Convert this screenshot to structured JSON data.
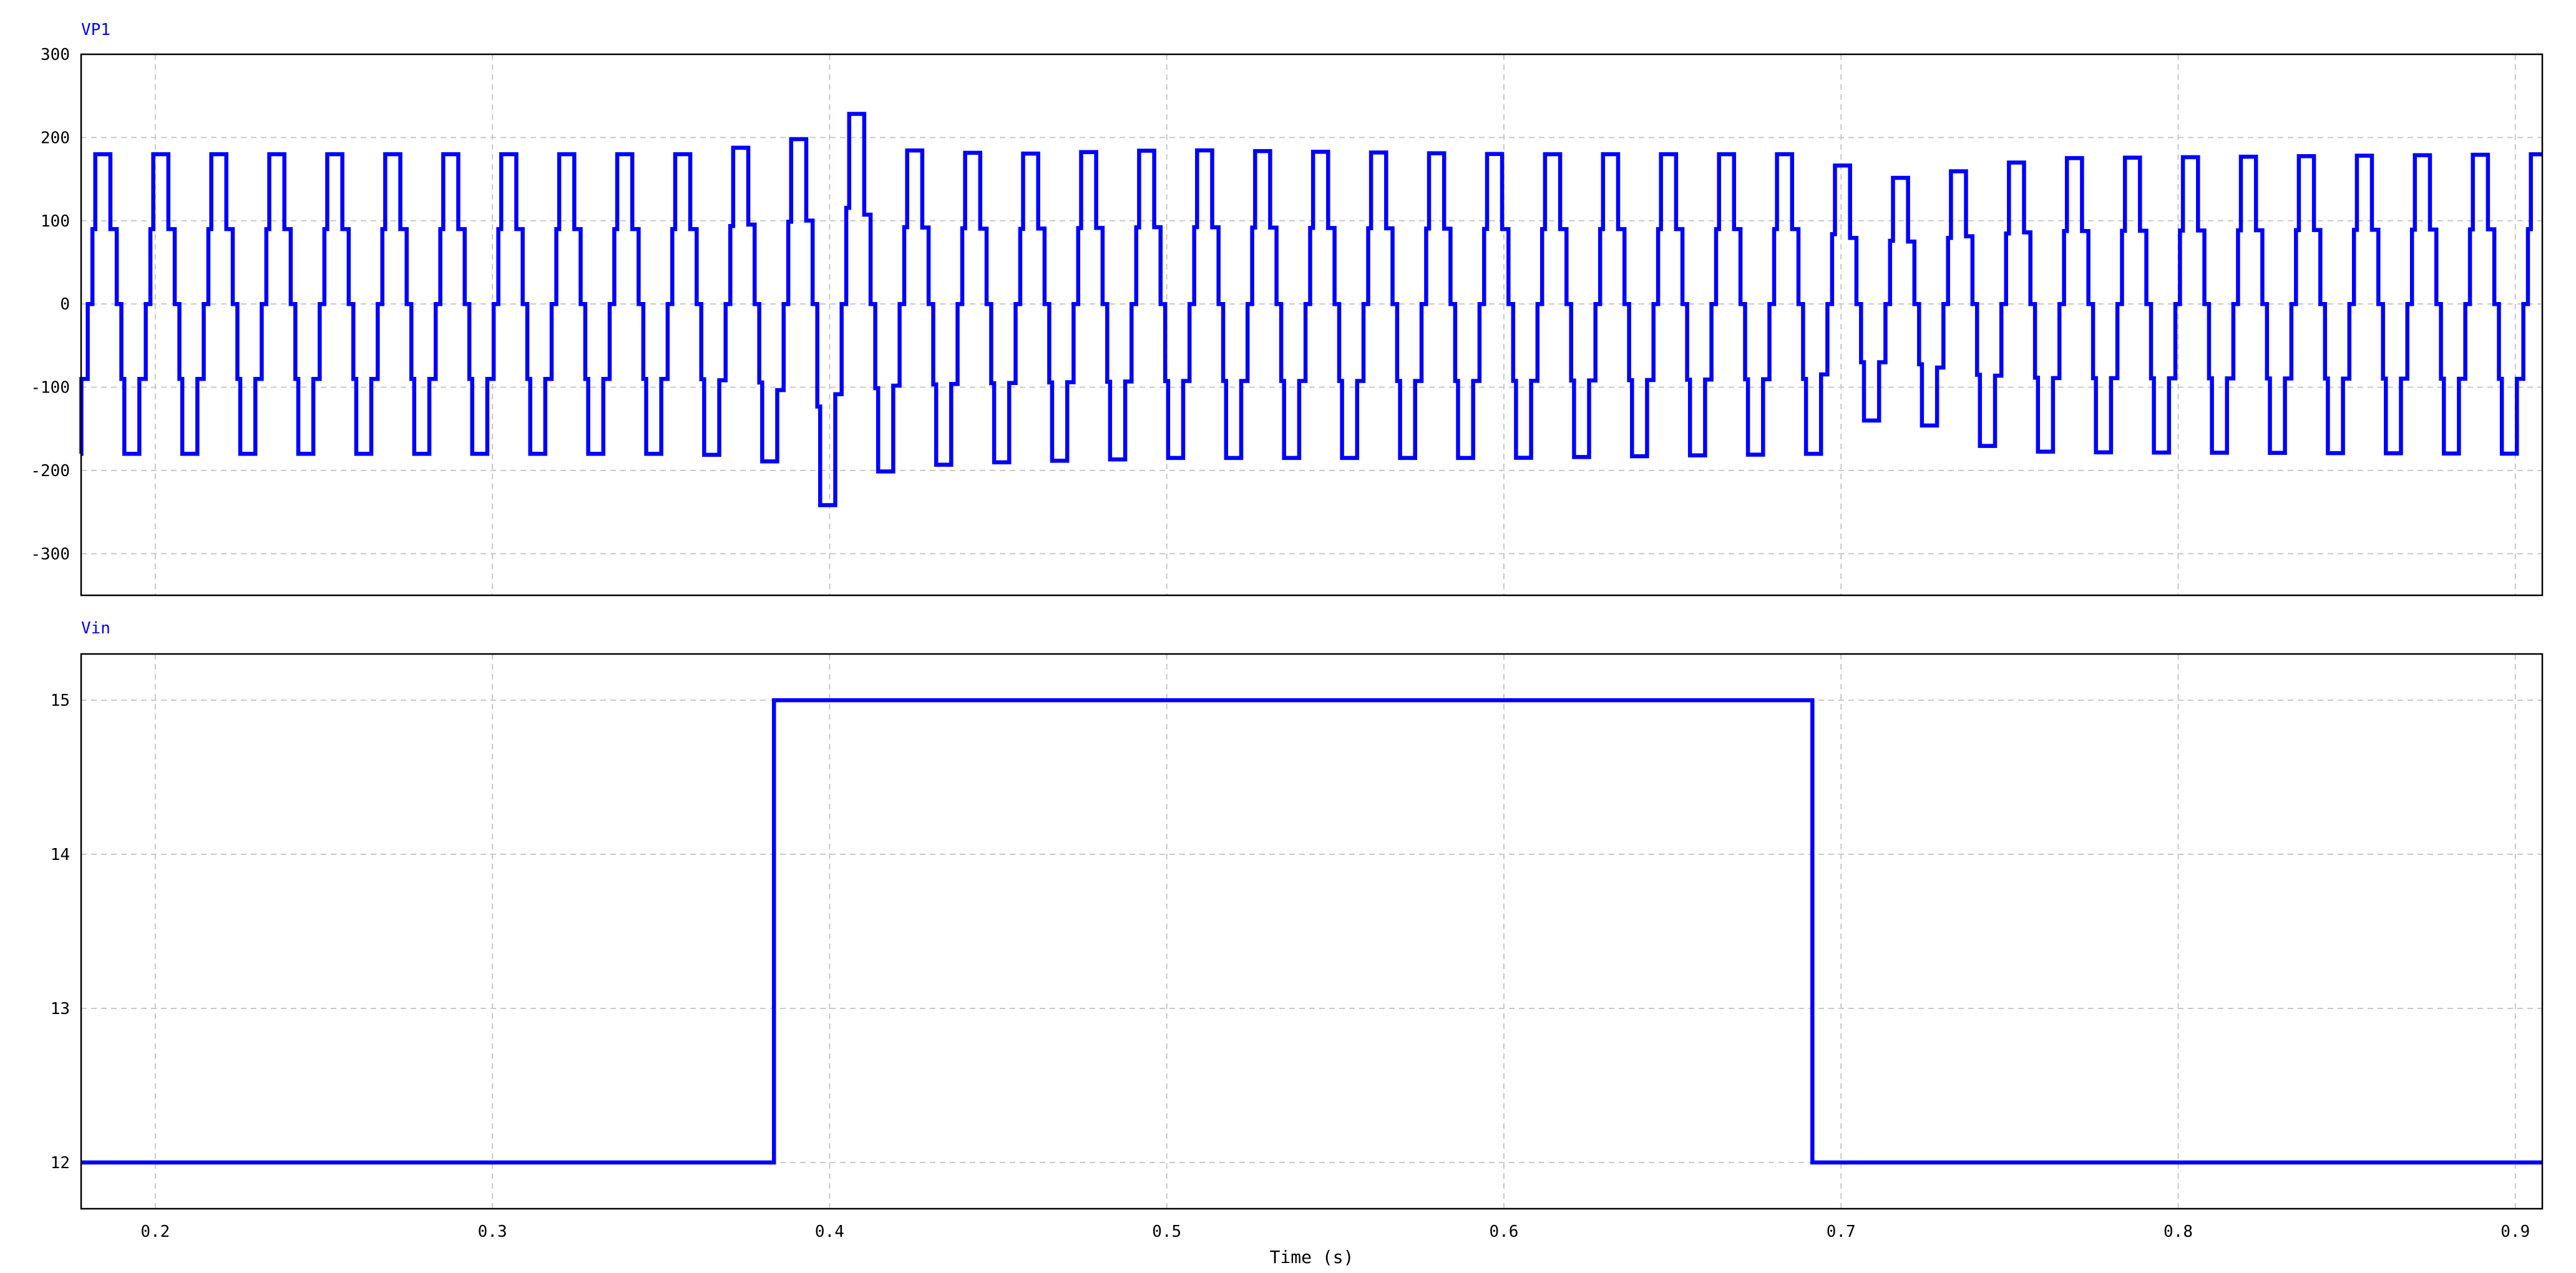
{
  "chart_data": [
    {
      "type": "line",
      "title": "VP1",
      "xlabel": "",
      "ylabel": "",
      "xlim": [
        0.178,
        0.908
      ],
      "ylim": [
        -350,
        300
      ],
      "yticks": [
        -300,
        -200,
        -100,
        0,
        100,
        200,
        300
      ],
      "ytick_labels": [
        "-300",
        "-200",
        "-100",
        "0",
        "100",
        "200",
        "300"
      ],
      "grid": true,
      "waveform": "stepped periodic (five-level)",
      "period_s": 0.0172,
      "first_positive_step_s": 0.181,
      "step_levels": [
        0,
        90,
        180
      ],
      "series": [
        {
          "color": "#0000ff",
          "cycle_amplitudes": [
            {
              "t": 0.178,
              "peak": 180,
              "trough": -180
            },
            {
              "t": 0.36,
              "peak": 180,
              "trough": -180
            },
            {
              "t": 0.382,
              "peak": 195,
              "trough": -190
            },
            {
              "t": 0.393,
              "peak": 200,
              "trough": -265
            },
            {
              "t": 0.402,
              "peak": 240,
              "trough": -215
            },
            {
              "t": 0.42,
              "peak": 185,
              "trough": -195
            },
            {
              "t": 0.45,
              "peak": 180,
              "trough": -190
            },
            {
              "t": 0.5,
              "peak": 185,
              "trough": -185
            },
            {
              "t": 0.6,
              "peak": 180,
              "trough": -185
            },
            {
              "t": 0.69,
              "peak": 180,
              "trough": -180
            },
            {
              "t": 0.705,
              "peak": 155,
              "trough": -140
            },
            {
              "t": 0.72,
              "peak": 150,
              "trough": -140
            },
            {
              "t": 0.74,
              "peak": 165,
              "trough": -170
            },
            {
              "t": 0.76,
              "peak": 175,
              "trough": -178
            },
            {
              "t": 0.908,
              "peak": 180,
              "trough": -180
            }
          ]
        }
      ]
    },
    {
      "type": "line",
      "title": "Vin",
      "xlabel": "Time (s)",
      "ylabel": "",
      "xlim": [
        0.178,
        0.908
      ],
      "ylim": [
        11.7,
        15.3
      ],
      "yticks": [
        12,
        13,
        14,
        15
      ],
      "ytick_labels": [
        "12",
        "13",
        "14",
        "15"
      ],
      "xticks": [
        0.2,
        0.3,
        0.4,
        0.5,
        0.6,
        0.7,
        0.8,
        0.9
      ],
      "xtick_labels": [
        "0.2",
        "0.3",
        "0.4",
        "0.5",
        "0.6",
        "0.7",
        "0.8",
        "0.9"
      ],
      "grid": true,
      "series": [
        {
          "color": "#0000ff",
          "x": [
            0.178,
            0.3835,
            0.3835,
            0.6915,
            0.6915,
            0.908
          ],
          "y": [
            12,
            12,
            15,
            15,
            12,
            12
          ]
        }
      ]
    }
  ]
}
